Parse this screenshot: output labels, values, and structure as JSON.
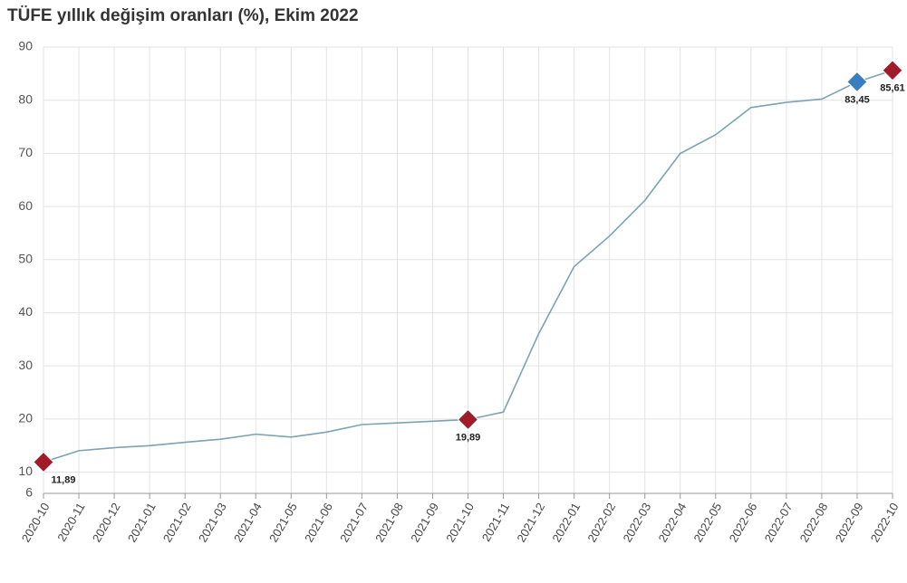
{
  "chart_data": {
    "type": "line",
    "title": "TÜFE yıllık değişim oranları (%), Ekim 2022",
    "categories": [
      "2020-10",
      "2020-11",
      "2020-12",
      "2021-01",
      "2021-02",
      "2021-03",
      "2021-04",
      "2021-05",
      "2021-06",
      "2021-07",
      "2021-08",
      "2021-09",
      "2021-10",
      "2021-11",
      "2021-12",
      "2022-01",
      "2022-02",
      "2022-03",
      "2022-04",
      "2022-05",
      "2022-06",
      "2022-07",
      "2022-08",
      "2022-09",
      "2022-10"
    ],
    "values": [
      11.89,
      14.03,
      14.6,
      14.97,
      15.61,
      16.19,
      17.14,
      16.59,
      17.53,
      18.95,
      19.25,
      19.58,
      19.89,
      21.31,
      36.08,
      48.69,
      54.44,
      61.14,
      69.97,
      73.5,
      78.62,
      79.6,
      80.21,
      83.45,
      85.61
    ],
    "value_labels": [
      "11,89",
      null,
      null,
      null,
      null,
      null,
      null,
      null,
      null,
      null,
      null,
      null,
      "19,89",
      null,
      null,
      null,
      null,
      null,
      null,
      null,
      null,
      null,
      null,
      "83,45",
      "85,61"
    ],
    "marker_colors": [
      "#a01c2a",
      null,
      null,
      null,
      null,
      null,
      null,
      null,
      null,
      null,
      null,
      null,
      "#a01c2a",
      null,
      null,
      null,
      null,
      null,
      null,
      null,
      null,
      null,
      null,
      "#3a7ebf",
      "#a01c2a"
    ],
    "color": "#7aa3b3",
    "ylim": [
      6,
      90
    ],
    "yticks": [
      6,
      10,
      20,
      30,
      40,
      50,
      60,
      70,
      80,
      90
    ],
    "grid": true
  }
}
